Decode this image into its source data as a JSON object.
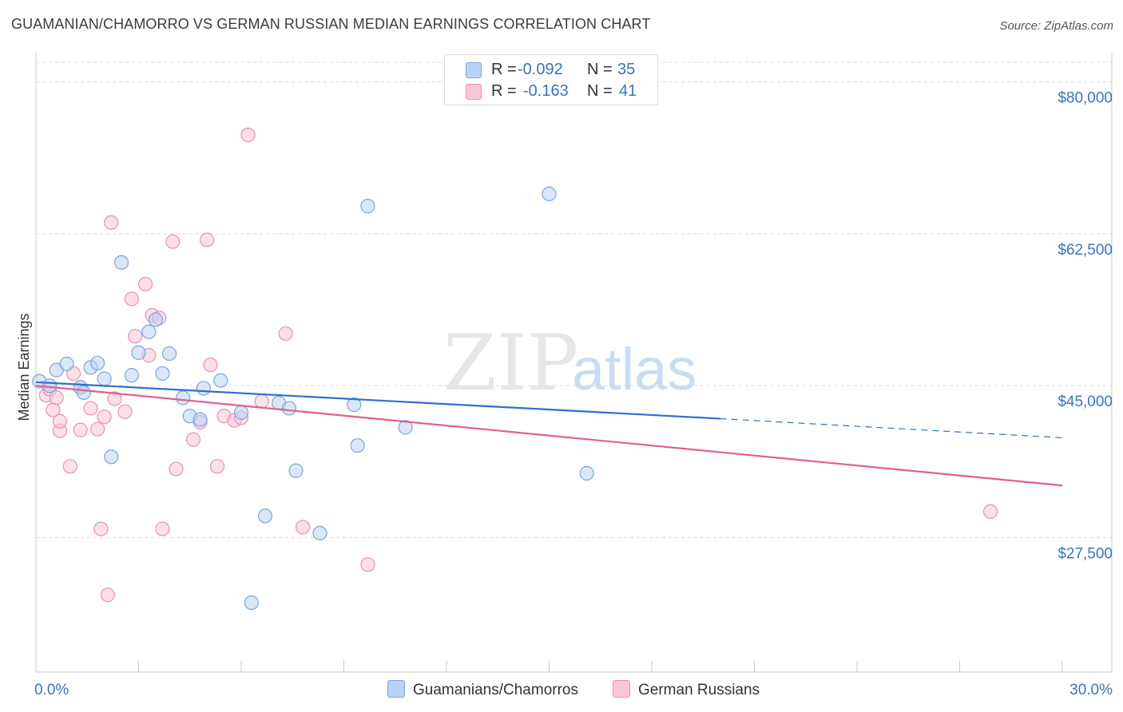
{
  "header": {
    "title": "GUAMANIAN/CHAMORRO VS GERMAN RUSSIAN MEDIAN EARNINGS CORRELATION CHART",
    "source": "Source: ZipAtlas.com"
  },
  "watermark": {
    "zip": "ZIP",
    "atlas": "atlas"
  },
  "legend": {
    "rows": [
      {
        "r_label": "R =",
        "r_value": "-0.092",
        "n_label": "N =",
        "n_value": "35"
      },
      {
        "r_label": "R =",
        "r_value": "-0.163",
        "n_label": "N =",
        "n_value": "41"
      }
    ]
  },
  "bottom_legend": [
    "Guamanians/Chamorros",
    "German Russians"
  ],
  "colors": {
    "blue_fill": "#b9d3f3",
    "blue_stroke": "#7aa6de",
    "blue_line": "#2f6fcc",
    "pink_fill": "#f8c6d6",
    "pink_stroke": "#ec8fae",
    "pink_line": "#e0608a",
    "axis_text": "#3a72c9",
    "grid": "#dcdcdc"
  },
  "chart_data": {
    "type": "scatter",
    "title": "GUAMANIAN/CHAMORRO VS GERMAN RUSSIAN MEDIAN EARNINGS CORRELATION CHART",
    "xlabel": "",
    "ylabel": "Median Earnings",
    "xlim": [
      0,
      30
    ],
    "ylim": [
      12000,
      83000
    ],
    "x_tick_labels": [
      "0.0%",
      "30.0%"
    ],
    "y_ticks": [
      27500,
      45000,
      62500,
      80000
    ],
    "y_tick_labels": [
      "$27,500",
      "$45,000",
      "$62,500",
      "$80,000"
    ],
    "grid": true,
    "series": [
      {
        "name": "Guamanians/Chamorros",
        "r": -0.092,
        "n": 35,
        "trend": {
          "x0": 0,
          "y0": 45400,
          "x1": 20,
          "y1": 41200,
          "dash_to_x": 30,
          "dash_to_y": 39000
        },
        "points": [
          [
            0.1,
            45500
          ],
          [
            0.6,
            46800
          ],
          [
            0.9,
            47500
          ],
          [
            1.3,
            44800
          ],
          [
            1.4,
            44200
          ],
          [
            1.6,
            47100
          ],
          [
            1.8,
            47600
          ],
          [
            2.0,
            45800
          ],
          [
            2.2,
            36800
          ],
          [
            2.5,
            59200
          ],
          [
            2.8,
            46200
          ],
          [
            3.0,
            48800
          ],
          [
            3.3,
            51200
          ],
          [
            3.5,
            52600
          ],
          [
            3.7,
            46400
          ],
          [
            3.9,
            48700
          ],
          [
            4.3,
            43600
          ],
          [
            4.5,
            41500
          ],
          [
            4.8,
            41100
          ],
          [
            4.9,
            44700
          ],
          [
            5.4,
            45600
          ],
          [
            6.0,
            41900
          ],
          [
            6.3,
            20000
          ],
          [
            6.7,
            30000
          ],
          [
            7.1,
            43000
          ],
          [
            7.4,
            42400
          ],
          [
            7.6,
            35200
          ],
          [
            8.3,
            28000
          ],
          [
            9.3,
            42800
          ],
          [
            9.4,
            38100
          ],
          [
            9.7,
            65700
          ],
          [
            10.8,
            40200
          ],
          [
            15.0,
            67100
          ],
          [
            16.1,
            34900
          ],
          [
            0.4,
            45000
          ]
        ]
      },
      {
        "name": "German Russians",
        "r": -0.163,
        "n": 41,
        "trend": {
          "x0": 0,
          "y0": 45000,
          "x1": 30,
          "y1": 33500
        },
        "points": [
          [
            0.3,
            43900
          ],
          [
            0.4,
            44600
          ],
          [
            0.5,
            42200
          ],
          [
            0.6,
            43600
          ],
          [
            0.7,
            39800
          ],
          [
            0.7,
            40900
          ],
          [
            1.0,
            35700
          ],
          [
            1.1,
            46400
          ],
          [
            1.3,
            44800
          ],
          [
            1.3,
            39900
          ],
          [
            1.6,
            42400
          ],
          [
            1.8,
            40000
          ],
          [
            1.9,
            28500
          ],
          [
            2.0,
            41400
          ],
          [
            2.1,
            20900
          ],
          [
            2.2,
            63800
          ],
          [
            2.3,
            43500
          ],
          [
            2.6,
            42000
          ],
          [
            2.8,
            55000
          ],
          [
            2.9,
            50700
          ],
          [
            3.2,
            56700
          ],
          [
            3.3,
            48500
          ],
          [
            3.4,
            53100
          ],
          [
            3.6,
            52800
          ],
          [
            3.7,
            28500
          ],
          [
            4.0,
            61600
          ],
          [
            4.1,
            35400
          ],
          [
            4.6,
            38800
          ],
          [
            4.8,
            40800
          ],
          [
            5.0,
            61800
          ],
          [
            5.1,
            47400
          ],
          [
            5.3,
            35700
          ],
          [
            5.5,
            41500
          ],
          [
            5.8,
            41000
          ],
          [
            6.0,
            41300
          ],
          [
            6.2,
            73900
          ],
          [
            6.6,
            43200
          ],
          [
            7.3,
            51000
          ],
          [
            7.8,
            28700
          ],
          [
            9.7,
            24400
          ],
          [
            27.9,
            30500
          ]
        ]
      }
    ]
  }
}
